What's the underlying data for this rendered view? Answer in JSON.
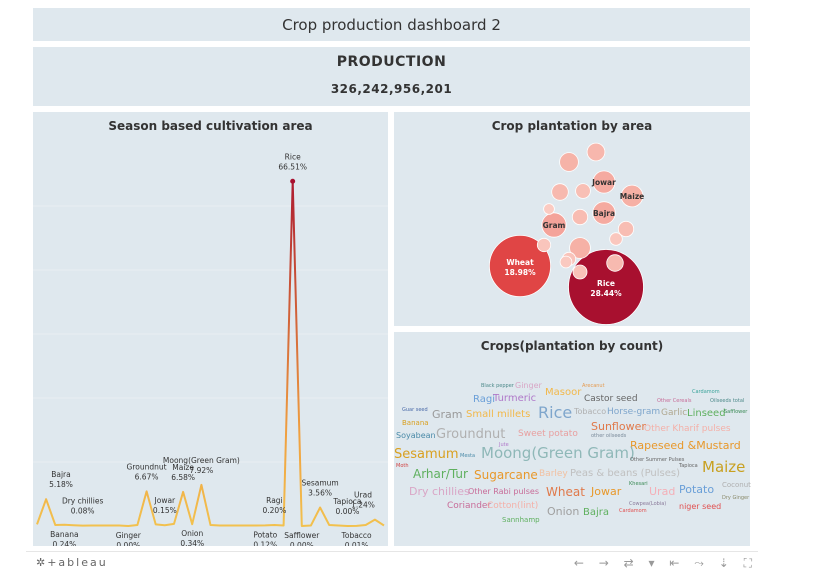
{
  "header": {
    "title": "Crop production dashboard 2"
  },
  "production": {
    "label": "PRODUCTION",
    "value": "326,242,956,201"
  },
  "footer": {
    "logo": "✲+ableau",
    "tools": [
      "←",
      "→",
      "⇄",
      "▾",
      "⇤",
      "⤳",
      "⇣",
      "⛶"
    ]
  },
  "chart_data": [
    {
      "type": "line",
      "title": "Season based cultivation area",
      "ylim": [
        0,
        71
      ],
      "grid": false,
      "points": [
        {
          "v": 0.3
        },
        {
          "name": "Bajra",
          "pct": "5.18%",
          "v": 5.18,
          "pos": "above"
        },
        {
          "v": 0.2
        },
        {
          "name": "Banana",
          "pct": "0.24%",
          "v": 0.24,
          "pos": "below"
        },
        {
          "v": 0.15
        },
        {
          "name": "Dry chillies",
          "pct": "0.08%",
          "v": 0.08,
          "pos": "above"
        },
        {
          "v": 0.1
        },
        {
          "v": 0.1
        },
        {
          "v": 0.1
        },
        {
          "v": 0.1
        },
        {
          "name": "Ginger",
          "pct": "0.00%",
          "v": 0.0,
          "pos": "below"
        },
        {
          "v": 0.2
        },
        {
          "name": "Groundnut",
          "pct": "6.67%",
          "v": 6.67,
          "pos": "above"
        },
        {
          "v": 0.3
        },
        {
          "name": "Jowar",
          "pct": "0.15%",
          "v": 0.15,
          "pos": "above"
        },
        {
          "v": 0.4
        },
        {
          "name": "Maize",
          "pct": "6.58%",
          "v": 6.58,
          "pos": "above"
        },
        {
          "name": "Onion",
          "pct": "0.34%",
          "v": 0.34,
          "pos": "below"
        },
        {
          "name": "Moong(Green Gram)",
          "pct": "7.92%",
          "v": 7.92,
          "pos": "above"
        },
        {
          "v": 0.2
        },
        {
          "v": 0.1
        },
        {
          "v": 0.1
        },
        {
          "v": 0.1
        },
        {
          "v": 0.1
        },
        {
          "v": 0.1
        },
        {
          "name": "Potato",
          "pct": "0.12%",
          "v": 0.12,
          "pos": "below"
        },
        {
          "name": "Ragi",
          "pct": "0.20%",
          "v": 0.2,
          "pos": "above"
        },
        {
          "v": 0.1
        },
        {
          "name": "Rice",
          "pct": "66.51%",
          "v": 66.51,
          "pos": "above"
        },
        {
          "name": "Safflower",
          "pct": "0.00%",
          "v": 0.0,
          "pos": "below"
        },
        {
          "v": 0.1
        },
        {
          "name": "Sesamum",
          "pct": "3.56%",
          "v": 3.56,
          "pos": "above"
        },
        {
          "v": 0.2
        },
        {
          "v": 0.1
        },
        {
          "name": "Tapioca",
          "pct": "0.00%",
          "v": 0.0,
          "pos": "above"
        },
        {
          "name": "Tobacco",
          "pct": "0.01%",
          "v": 0.01,
          "pos": "below"
        },
        {
          "v": 0.2
        },
        {
          "name": "Urad",
          "pct": "1.24%",
          "v": 1.24,
          "pos": "above"
        },
        {
          "v": 0.1
        }
      ],
      "color_low": "#f2c14e",
      "color_high": "#a8102f"
    },
    {
      "type": "bubble",
      "title": "Crop plantation by area",
      "bubbles": [
        {
          "name": "Rice",
          "pct": "28.44%",
          "value": 28.44,
          "color": "#a8102f"
        },
        {
          "name": "Wheat",
          "pct": "18.98%",
          "value": 18.98,
          "color": "#e04545"
        },
        {
          "name": "Gram",
          "value": 3.0,
          "color": "#f4a39a"
        },
        {
          "name": "Jowar",
          "value": 2.5,
          "color": "#f5aaa0"
        },
        {
          "name": "Bajra",
          "value": 2.6,
          "color": "#f5aaa0"
        },
        {
          "name": "Maize",
          "value": 2.4,
          "color": "#f6b0a5"
        },
        {
          "value": 2.2,
          "color": "#f6b1a6"
        },
        {
          "value": 1.8,
          "color": "#f6b3a8"
        },
        {
          "value": 1.6,
          "color": "#f7b7ad"
        },
        {
          "value": 1.4,
          "color": "#f7b9af"
        },
        {
          "value": 1.4,
          "color": "#f7bab0"
        },
        {
          "value": 1.2,
          "color": "#f8bcb2"
        },
        {
          "value": 1.2,
          "color": "#f8bdb3"
        },
        {
          "value": 1.1,
          "color": "#f8bfb5"
        },
        {
          "value": 1.0,
          "color": "#f9c2b8"
        },
        {
          "value": 0.9,
          "color": "#f9c3ba"
        },
        {
          "value": 0.9,
          "color": "#f9c5bc"
        },
        {
          "value": 0.8,
          "color": "#fac7be"
        },
        {
          "value": 0.7,
          "color": "#fac9c0"
        },
        {
          "value": 0.6,
          "color": "#fbcbc2"
        }
      ]
    },
    {
      "type": "wordcloud",
      "title": "Crops(plantation by count)",
      "words": [
        {
          "text": "Black pepper",
          "color": "#4e8a8a"
        },
        {
          "text": "Ginger",
          "color": "#d9a6c6"
        },
        {
          "text": "Arecanut",
          "color": "#e59a4f"
        },
        {
          "text": "Cardamom",
          "color": "#3aa39a"
        },
        {
          "text": "Ragi",
          "color": "#6a9fd8"
        },
        {
          "text": "Turmeric",
          "color": "#b079c9"
        },
        {
          "text": "Masoor",
          "color": "#f2b84a"
        },
        {
          "text": "Castor seed",
          "color": "#666666"
        },
        {
          "text": "Other Cereals",
          "color": "#c86d99"
        },
        {
          "text": "Oilseeds total",
          "color": "#4e8a8a"
        },
        {
          "text": "Guar seed",
          "color": "#4a6aa8"
        },
        {
          "text": "Gram",
          "color": "#9a9a9a"
        },
        {
          "text": "Small millets",
          "color": "#f2b84a"
        },
        {
          "text": "Rice",
          "color": "#7fa6cc"
        },
        {
          "text": "Tobacco",
          "color": "#b0b0b0"
        },
        {
          "text": "Horse-gram",
          "color": "#7fa6cc"
        },
        {
          "text": "Garlic",
          "color": "#b0a890"
        },
        {
          "text": "Linseed",
          "color": "#5fb05f"
        },
        {
          "text": "Safflower",
          "color": "#3a8a55"
        },
        {
          "text": "Banana",
          "color": "#d9a020"
        },
        {
          "text": "Sunflower",
          "color": "#e0794a"
        },
        {
          "text": "Soyabean",
          "color": "#4a8aa8"
        },
        {
          "text": "Groundnut",
          "color": "#b0b0b0"
        },
        {
          "text": "Sweet potato",
          "color": "#e8a0a0"
        },
        {
          "text": "other oilseeds",
          "color": "#7a8a9a"
        },
        {
          "text": "Other Kharif pulses",
          "color": "#f4b0a8"
        },
        {
          "text": "Rapeseed &Mustard",
          "color": "#e8982a"
        },
        {
          "text": "Jute",
          "color": "#b079c9"
        },
        {
          "text": "Sesamum",
          "color": "#d9a020"
        },
        {
          "text": "Mesta",
          "color": "#4a8aa8"
        },
        {
          "text": "Moong(Green Gram)",
          "color": "#8fb8b8"
        },
        {
          "text": "Other Summer Pulses",
          "color": "#666666"
        },
        {
          "text": "Moth",
          "color": "#d04040"
        },
        {
          "text": "Arhar/Tur",
          "color": "#5fb05f"
        },
        {
          "text": "Sugarcane",
          "color": "#e8982a"
        },
        {
          "text": "Barley",
          "color": "#f2c0a0"
        },
        {
          "text": "Peas & beans (Pulses)",
          "color": "#c0c0c0"
        },
        {
          "text": "Tapioca",
          "color": "#666666"
        },
        {
          "text": "Maize",
          "color": "#c8a020"
        },
        {
          "text": "Dry chillies",
          "color": "#d9a6c6"
        },
        {
          "text": "Other Rabi pulses",
          "color": "#c86d99"
        },
        {
          "text": "Wheat",
          "color": "#e0794a"
        },
        {
          "text": "Jowar",
          "color": "#e8982a"
        },
        {
          "text": "Khesari",
          "color": "#3a8a55"
        },
        {
          "text": "Urad",
          "color": "#f4b0b8"
        },
        {
          "text": "Potato",
          "color": "#6a9fd8"
        },
        {
          "text": "Coconut",
          "color": "#b0b0b0"
        },
        {
          "text": "Dry Ginger",
          "color": "#8a8a6a"
        },
        {
          "text": "Coriander",
          "color": "#c86d99"
        },
        {
          "text": "Cotton(lint)",
          "color": "#f4b0a8"
        },
        {
          "text": "Cowpea(Lobia)",
          "color": "#8a7a9a"
        },
        {
          "text": "niger seed",
          "color": "#e05050"
        },
        {
          "text": "Onion",
          "color": "#a0a0a0"
        },
        {
          "text": "Bajra",
          "color": "#5fb05f"
        },
        {
          "text": "Cardamom",
          "color": "#e05050"
        },
        {
          "text": "Sannhamp",
          "color": "#5fb05f"
        }
      ]
    }
  ]
}
